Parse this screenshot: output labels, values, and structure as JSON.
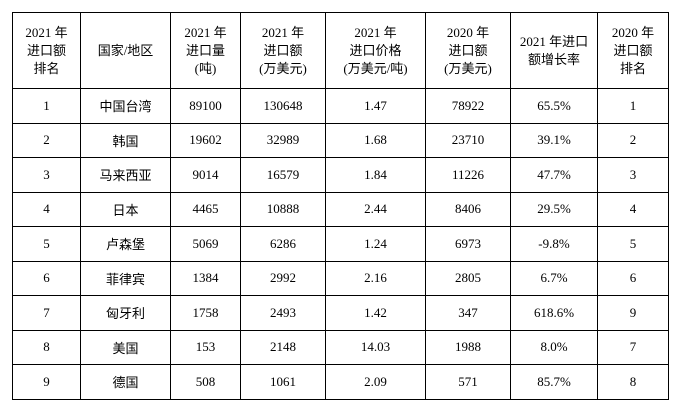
{
  "table": {
    "header": [
      [
        "2021 年",
        "进口额",
        "排名"
      ],
      [
        "国家/地区"
      ],
      [
        "2021 年",
        "进口量",
        "(吨)"
      ],
      [
        "2021 年",
        "进口额",
        "(万美元)"
      ],
      [
        "2021 年",
        "进口价格",
        "(万美元/吨)"
      ],
      [
        "2020 年",
        "进口额",
        "(万美元)"
      ],
      [
        "2021 年进口",
        "额增长率"
      ],
      [
        "2020 年",
        "进口额",
        "排名"
      ]
    ],
    "rows": [
      [
        "1",
        "中国台湾",
        "89100",
        "130648",
        "1.47",
        "78922",
        "65.5%",
        "1"
      ],
      [
        "2",
        "韩国",
        "19602",
        "32989",
        "1.68",
        "23710",
        "39.1%",
        "2"
      ],
      [
        "3",
        "马来西亚",
        "9014",
        "16579",
        "1.84",
        "11226",
        "47.7%",
        "3"
      ],
      [
        "4",
        "日本",
        "4465",
        "10888",
        "2.44",
        "8406",
        "29.5%",
        "4"
      ],
      [
        "5",
        "卢森堡",
        "5069",
        "6286",
        "1.24",
        "6973",
        "-9.8%",
        "5"
      ],
      [
        "6",
        "菲律宾",
        "1384",
        "2992",
        "2.16",
        "2805",
        "6.7%",
        "6"
      ],
      [
        "7",
        "匈牙利",
        "1758",
        "2493",
        "1.42",
        "347",
        "618.6%",
        "9"
      ],
      [
        "8",
        "美国",
        "153",
        "2148",
        "14.03",
        "1988",
        "8.0%",
        "7"
      ],
      [
        "9",
        "德国",
        "508",
        "1061",
        "2.09",
        "571",
        "85.7%",
        "8"
      ]
    ]
  }
}
